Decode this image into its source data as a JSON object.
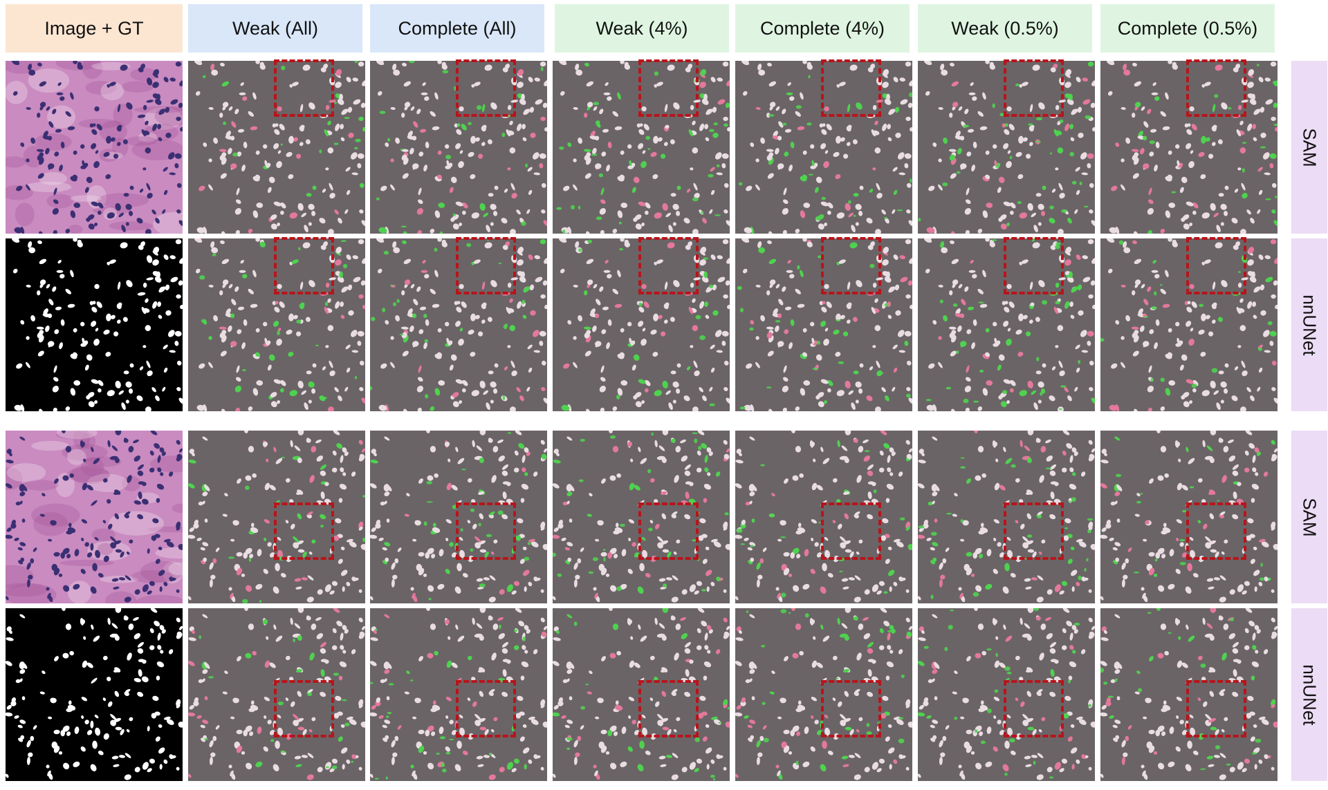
{
  "columns": [
    {
      "label": "Image + GT",
      "color": "#fce6d2"
    },
    {
      "label": "Weak (All)",
      "color": "#d9e7f8"
    },
    {
      "label": "Complete (All)",
      "color": "#d9e7f8"
    },
    {
      "label": "Weak (4%)",
      "color": "#dff5e1"
    },
    {
      "label": "Complete (4%)",
      "color": "#dff5e1"
    },
    {
      "label": "Weak (0.5%)",
      "color": "#dff5e1"
    },
    {
      "label": "Complete (0.5%)",
      "color": "#dff5e1"
    }
  ],
  "rows": [
    {
      "label": "SAM",
      "first_panel": "he-image",
      "seed": 11
    },
    {
      "label": "nnUNet",
      "first_panel": "ground-truth-mask",
      "seed": 11
    },
    {
      "label": "SAM",
      "first_panel": "he-image",
      "seed": 37
    },
    {
      "label": "nnUNet",
      "first_panel": "ground-truth-mask",
      "seed": 37
    }
  ],
  "colors": {
    "overlay_background": "#6b6466",
    "true_positive": "#e9dde2",
    "false_negative": "#e3799b",
    "false_positive": "#4fd24f",
    "zoom_box": "#b8141a",
    "he_stroma_1": "#c98bc0",
    "he_stroma_2": "#a55a9c",
    "he_nucleus": "#3b2f73",
    "mask_background": "#000000",
    "mask_foreground": "#ffffff"
  }
}
